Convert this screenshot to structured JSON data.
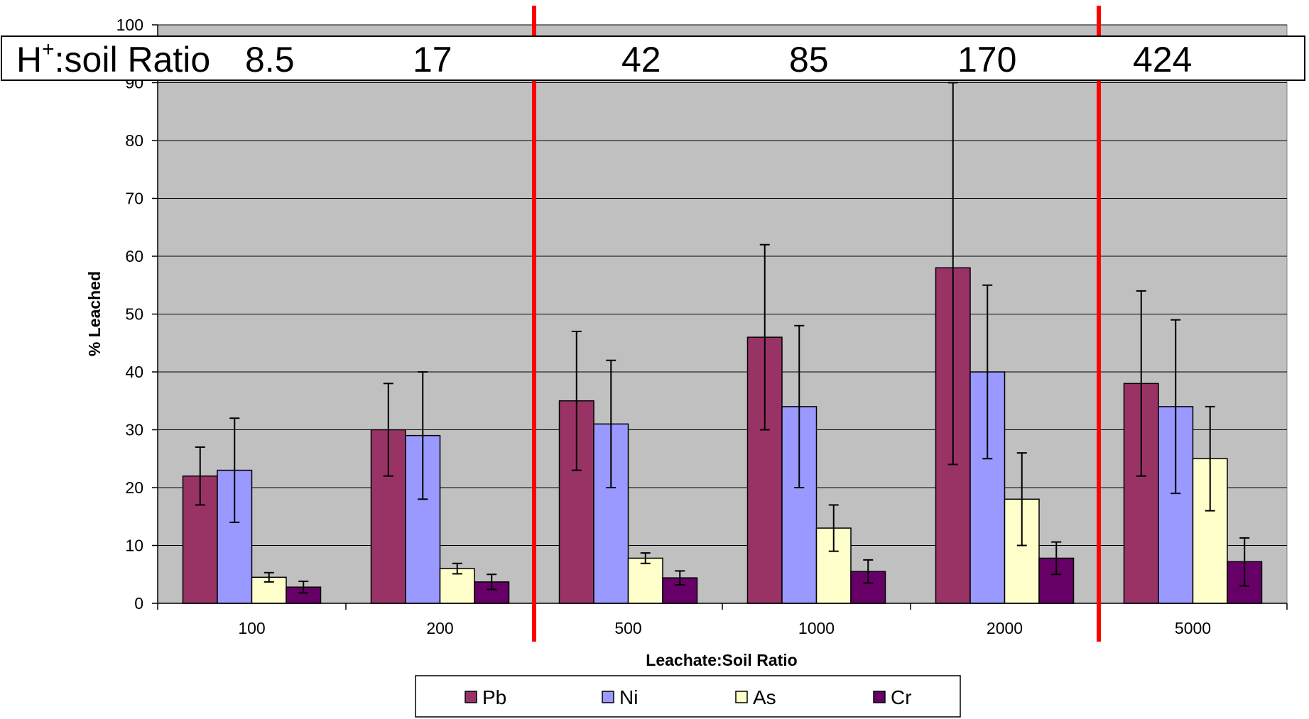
{
  "chart_data": {
    "type": "bar",
    "categories": [
      "100",
      "200",
      "500",
      "1000",
      "2000",
      "5000"
    ],
    "series": [
      {
        "name": "Pb",
        "color": "#993366",
        "values": [
          22,
          30,
          35,
          46,
          58,
          38
        ],
        "err_low": [
          17,
          22,
          23,
          30,
          24,
          22
        ],
        "err_high": [
          27,
          38,
          47,
          62,
          90,
          54
        ]
      },
      {
        "name": "Ni",
        "color": "#9999FF",
        "values": [
          23,
          29,
          31,
          34,
          40,
          34
        ],
        "err_low": [
          14,
          18,
          20,
          20,
          25,
          19
        ],
        "err_high": [
          32,
          40,
          42,
          48,
          55,
          49
        ]
      },
      {
        "name": "As",
        "color": "#FFFFCC",
        "values": [
          4.5,
          6,
          7.8,
          13,
          18,
          25
        ],
        "err_low": [
          3.7,
          5.1,
          6.9,
          9,
          10,
          16
        ],
        "err_high": [
          5.3,
          6.9,
          8.7,
          17,
          26,
          34
        ]
      },
      {
        "name": "Cr",
        "color": "#660066",
        "values": [
          2.8,
          3.7,
          4.4,
          5.5,
          7.8,
          7.2
        ],
        "err_low": [
          1.8,
          2.4,
          3.2,
          3.5,
          5,
          3
        ],
        "err_high": [
          3.8,
          5,
          5.6,
          7.5,
          10.6,
          11.3
        ]
      }
    ],
    "xlabel": "Leachate:Soil Ratio",
    "ylabel": "% Leached",
    "ylim": [
      0,
      100
    ],
    "yticks": [
      0,
      10,
      20,
      30,
      40,
      50,
      60,
      70,
      80,
      90,
      100
    ],
    "grid": true,
    "legend_position": "bottom",
    "plot_background": "#C0C0C0",
    "divider_color": "#FF0000",
    "divider_after_categories": [
      "200",
      "2000"
    ],
    "annotation": {
      "title_main": "H",
      "title_sup": "+",
      "title_rest": ":soil Ratio",
      "values": [
        "8.5",
        "17",
        "42",
        "85",
        "170",
        "424"
      ]
    }
  }
}
